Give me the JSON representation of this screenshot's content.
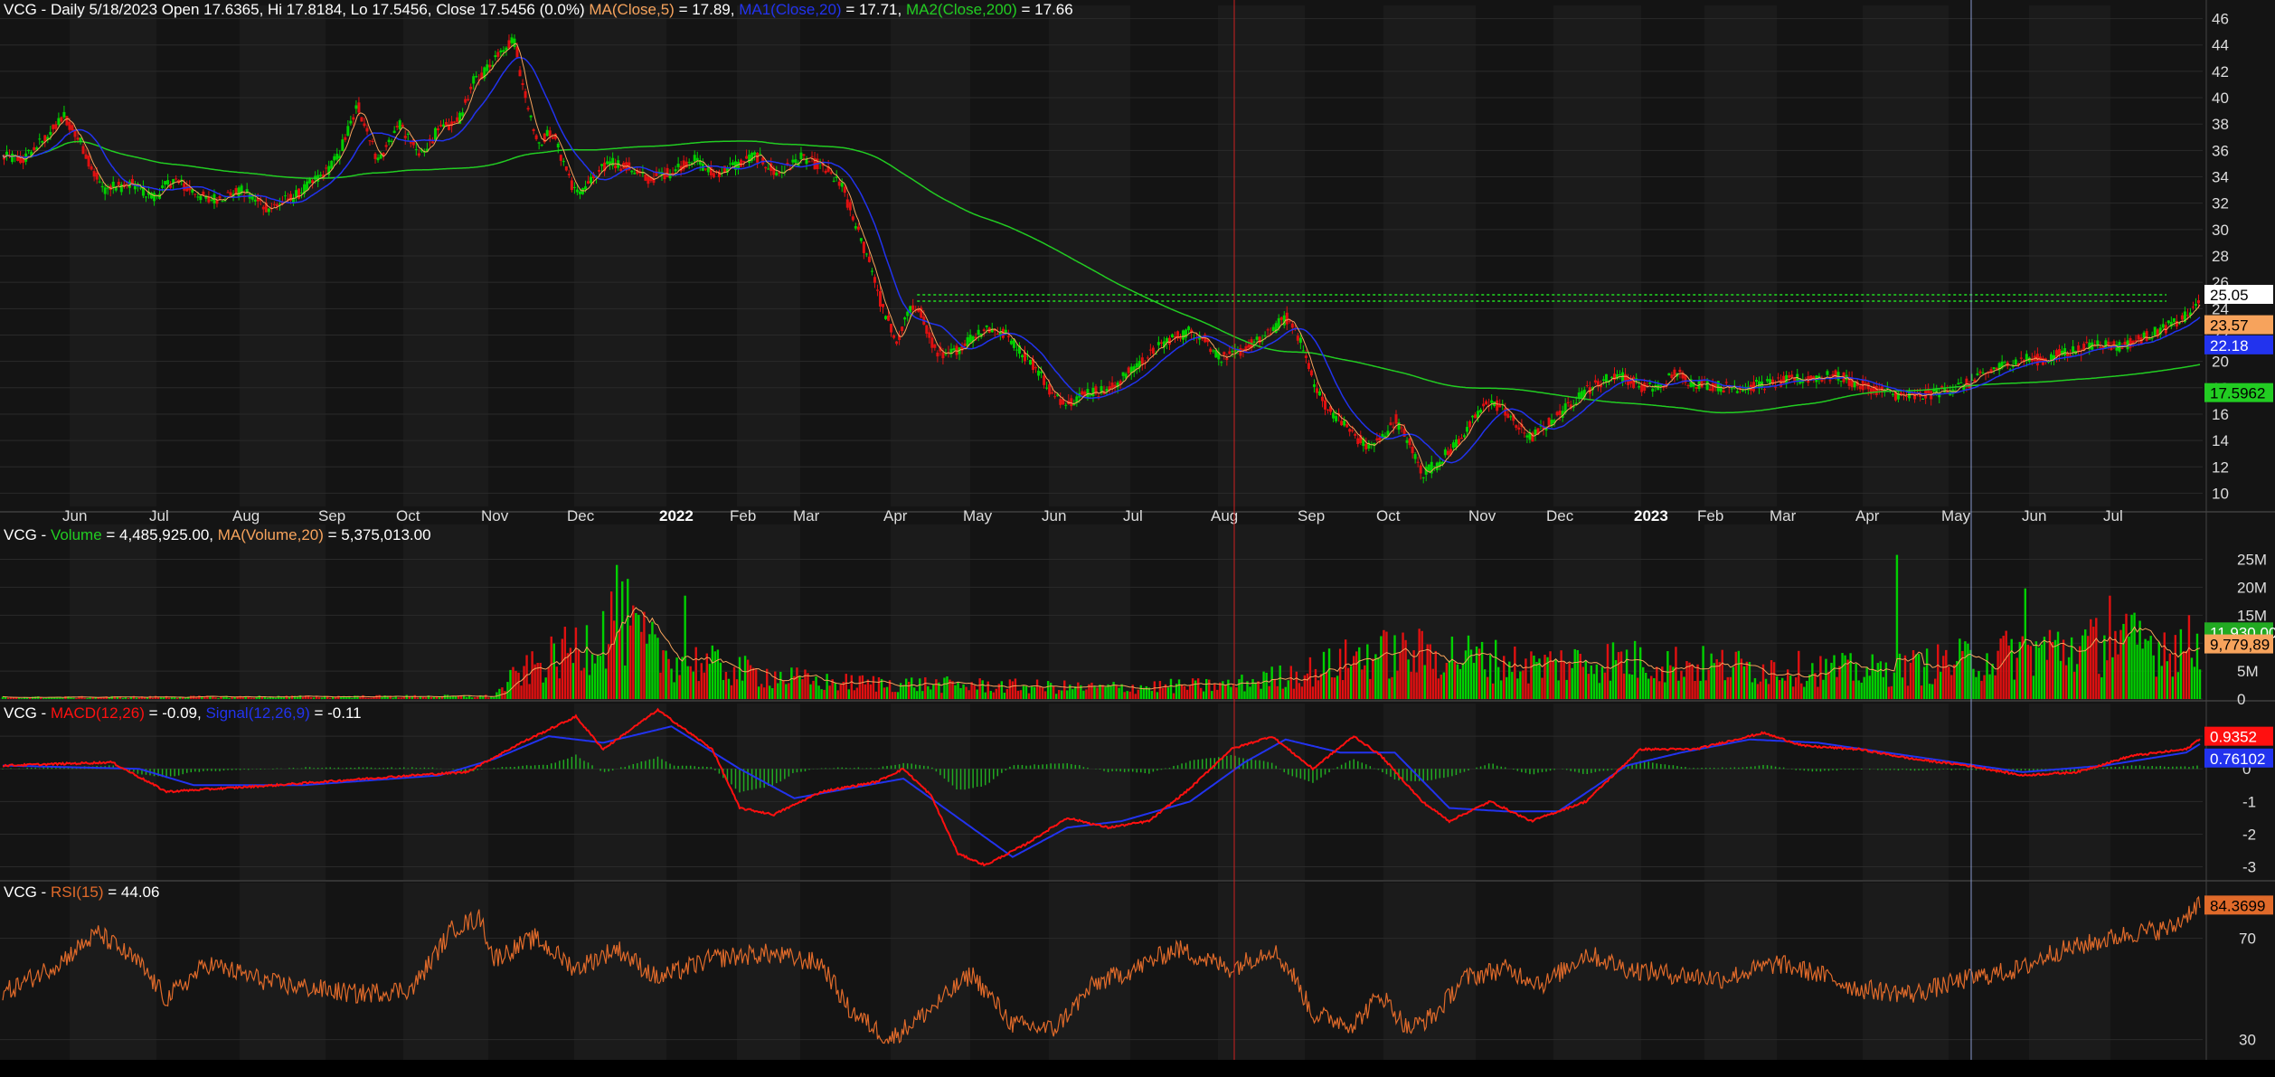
{
  "colors": {
    "bg": "#141414",
    "grid_band": "#1b1b1b",
    "grid_line": "#2a2a2a",
    "up": "#00d000",
    "down": "#e01010",
    "ma5": "#f7a35c",
    "ma20": "#2233ee",
    "ma200": "#22cc22",
    "vol_ma": "#f7a35c",
    "macd": "#ff1010",
    "signal": "#2233ee",
    "hist": "#22aa22",
    "rsi": "#e06a2a",
    "text": "#ffffff",
    "axis_text": "#dddddd"
  },
  "price_panel": {
    "header": {
      "prefix": "VCG - Daily 5/18/2023 Open 17.6365, Hi 17.8184, Lo 17.5456, Close 17.5456 (0.0%) ",
      "ma5_label": "MA(Close,5)",
      "ma5_value": " = 17.89, ",
      "ma20_label": "MA1(Close,20)",
      "ma20_value": " = 17.71, ",
      "ma200_label": "MA2(Close,200)",
      "ma200_value": " = 17.66"
    },
    "badges": [
      "25.05",
      "23.57",
      "22.18",
      "17.5962"
    ],
    "resistance_level": "25.05"
  },
  "volume_panel": {
    "header": {
      "prefix": "VCG - ",
      "label": "Volume",
      "value": " = 4,485,925.00, ",
      "ma_label": "MA(Volume,20)",
      "ma_value": " = 5,375,013.00"
    },
    "badges": [
      "11,930,00",
      "9,779,89"
    ]
  },
  "macd_panel": {
    "header": {
      "prefix": "VCG - ",
      "label": "MACD(12,26)",
      "value": " = -0.09, ",
      "signal_label": "Signal(12,26,9)",
      "signal_value": " = -0.11"
    },
    "badges": [
      "0.9352",
      "0.76102"
    ]
  },
  "rsi_panel": {
    "header": {
      "prefix": "VCG - ",
      "label": "RSI(15)",
      "value": " = 44.06"
    },
    "badges": [
      "84.3699"
    ]
  },
  "chart_data": [
    {
      "type": "candlestick",
      "title": "VCG - Daily",
      "x_ticks": [
        "Jun",
        "Jul",
        "Aug",
        "Sep",
        "Oct",
        "Nov",
        "Dec",
        "2022",
        "Feb",
        "Mar",
        "Apr",
        "May",
        "Jun",
        "Jul",
        "Aug",
        "Sep",
        "Oct",
        "Nov",
        "Dec",
        "2023",
        "Feb",
        "Mar",
        "Apr",
        "May",
        "Jun",
        "Jul"
      ],
      "y_ticks": [
        10,
        12,
        14,
        16,
        18,
        20,
        22,
        24,
        26,
        28,
        30,
        32,
        34,
        36,
        38,
        40,
        42,
        44,
        46
      ],
      "ylim": [
        9,
        47
      ],
      "close_anchors": [
        [
          0,
          35.5
        ],
        [
          15,
          35.3
        ],
        [
          35,
          37.4
        ],
        [
          45,
          38.6
        ],
        [
          58,
          36.4
        ],
        [
          72,
          33.1
        ],
        [
          95,
          33.4
        ],
        [
          110,
          32.4
        ],
        [
          125,
          33.8
        ],
        [
          150,
          32.2
        ],
        [
          175,
          32.9
        ],
        [
          195,
          31.6
        ],
        [
          215,
          32.6
        ],
        [
          235,
          34.2
        ],
        [
          245,
          35.4
        ],
        [
          260,
          39.4
        ],
        [
          275,
          35.2
        ],
        [
          290,
          38.0
        ],
        [
          305,
          35.6
        ],
        [
          318,
          37.4
        ],
        [
          333,
          38.2
        ],
        [
          345,
          41.2
        ],
        [
          355,
          42.2
        ],
        [
          365,
          43.8
        ],
        [
          375,
          44.3
        ],
        [
          382,
          40.2
        ],
        [
          392,
          36.6
        ],
        [
          402,
          37.4
        ],
        [
          412,
          34.8
        ],
        [
          420,
          32.6
        ],
        [
          432,
          33.8
        ],
        [
          445,
          35.2
        ],
        [
          460,
          34.6
        ],
        [
          472,
          33.8
        ],
        [
          490,
          34.4
        ],
        [
          505,
          35.4
        ],
        [
          520,
          34.2
        ],
        [
          535,
          34.8
        ],
        [
          552,
          35.6
        ],
        [
          567,
          34.2
        ],
        [
          585,
          35.4
        ],
        [
          600,
          34.8
        ],
        [
          615,
          33.2
        ],
        [
          625,
          30.1
        ],
        [
          635,
          27.6
        ],
        [
          645,
          23.8
        ],
        [
          655,
          21.4
        ],
        [
          662,
          23.4
        ],
        [
          670,
          24.4
        ],
        [
          680,
          21.4
        ],
        [
          690,
          20.2
        ],
        [
          705,
          21.4
        ],
        [
          720,
          22.6
        ],
        [
          735,
          22.0
        ],
        [
          750,
          20.3
        ],
        [
          760,
          19.1
        ],
        [
          770,
          17.2
        ],
        [
          782,
          17.0
        ],
        [
          795,
          17.7
        ],
        [
          810,
          17.8
        ],
        [
          825,
          19.2
        ],
        [
          840,
          20.5
        ],
        [
          855,
          21.7
        ],
        [
          870,
          22.3
        ],
        [
          880,
          21.8
        ],
        [
          890,
          20.4
        ],
        [
          900,
          20.3
        ],
        [
          912,
          21.2
        ],
        [
          922,
          21.6
        ],
        [
          930,
          22.4
        ],
        [
          940,
          23.3
        ],
        [
          948,
          22.3
        ],
        [
          955,
          20.1
        ],
        [
          962,
          17.8
        ],
        [
          972,
          16.3
        ],
        [
          982,
          15.3
        ],
        [
          992,
          14.2
        ],
        [
          1000,
          13.5
        ],
        [
          1010,
          14.1
        ],
        [
          1020,
          15.6
        ],
        [
          1030,
          13.8
        ],
        [
          1040,
          11.5
        ],
        [
          1050,
          12.2
        ],
        [
          1062,
          13.4
        ],
        [
          1075,
          15.2
        ],
        [
          1088,
          17.0
        ],
        [
          1100,
          16.4
        ],
        [
          1110,
          15.0
        ],
        [
          1120,
          14.2
        ],
        [
          1132,
          15.3
        ],
        [
          1145,
          16.4
        ],
        [
          1158,
          17.7
        ],
        [
          1170,
          18.4
        ],
        [
          1182,
          19.0
        ],
        [
          1192,
          18.6
        ],
        [
          1202,
          18.0
        ],
        [
          1215,
          18.0
        ],
        [
          1225,
          19.2
        ],
        [
          1237,
          18.4
        ],
        [
          1252,
          18.2
        ],
        [
          1265,
          18.0
        ],
        [
          1280,
          18.1
        ],
        [
          1295,
          18.3
        ],
        [
          1312,
          18.6
        ],
        [
          1328,
          18.8
        ],
        [
          1345,
          18.9
        ],
        [
          1360,
          18.2
        ],
        [
          1375,
          17.8
        ],
        [
          1390,
          17.4
        ],
        [
          1402,
          17.3
        ],
        [
          1415,
          17.6
        ],
        [
          1428,
          17.9
        ],
        [
          1442,
          18.4
        ],
        [
          1456,
          19.3
        ],
        [
          1470,
          19.8
        ],
        [
          1482,
          20.2
        ],
        [
          1496,
          20.1
        ],
        [
          1510,
          20.7
        ],
        [
          1522,
          20.9
        ],
        [
          1536,
          21.4
        ],
        [
          1550,
          21.1
        ],
        [
          1563,
          21.6
        ],
        [
          1577,
          22.2
        ],
        [
          1590,
          22.8
        ],
        [
          1600,
          23.4
        ],
        [
          1607,
          24.2
        ],
        [
          1610,
          25.05
        ]
      ],
      "series": [
        {
          "name": "MA(Close,5)",
          "value": 17.89
        },
        {
          "name": "MA1(Close,20)",
          "value": 17.71
        },
        {
          "name": "MA2(Close,200)",
          "value": 17.66
        }
      ],
      "last": {
        "open": 17.6365,
        "high": 17.8184,
        "low": 17.5456,
        "close": 17.5456
      }
    },
    {
      "type": "bar",
      "title": "Volume",
      "y_ticks": [
        "0",
        "5M",
        "10M",
        "15M",
        "20M",
        "25M"
      ],
      "ylim": [
        0,
        28
      ],
      "unit": "millions",
      "volume_anchors": [
        [
          0,
          0.3
        ],
        [
          360,
          0.5
        ],
        [
          375,
          4.0
        ],
        [
          420,
          9.0
        ],
        [
          450,
          14.0
        ],
        [
          480,
          8.0
        ],
        [
          540,
          5.0
        ],
        [
          600,
          3.0
        ],
        [
          700,
          2.5
        ],
        [
          800,
          2.0
        ],
        [
          900,
          2.5
        ],
        [
          960,
          5.0
        ],
        [
          1000,
          8.0
        ],
        [
          1060,
          8.0
        ],
        [
          1120,
          6.0
        ],
        [
          1180,
          7.0
        ],
        [
          1250,
          6.0
        ],
        [
          1300,
          5.5
        ],
        [
          1380,
          5.0
        ],
        [
          1440,
          7.0
        ],
        [
          1500,
          9.0
        ],
        [
          1560,
          10.0
        ],
        [
          1610,
          9.5
        ]
      ],
      "spikes": [
        [
          451,
          24.0
        ],
        [
          459,
          21.5
        ],
        [
          500,
          18.5
        ],
        [
          1388,
          25.8
        ],
        [
          1482,
          19.8
        ],
        [
          1545,
          18.5
        ]
      ],
      "series": [
        {
          "name": "Volume",
          "value": 4485925
        },
        {
          "name": "MA(Volume,20)",
          "value": 5375013
        }
      ]
    },
    {
      "type": "line",
      "title": "MACD",
      "y_ticks": [
        -3,
        -2,
        -1,
        0,
        1
      ],
      "ylim": [
        -3.4,
        2.0
      ],
      "macd_anchors": [
        [
          0,
          0.1
        ],
        [
          80,
          0.2
        ],
        [
          120,
          -0.7
        ],
        [
          200,
          -0.5
        ],
        [
          300,
          -0.2
        ],
        [
          340,
          -0.1
        ],
        [
          380,
          0.8
        ],
        [
          420,
          1.6
        ],
        [
          440,
          0.6
        ],
        [
          480,
          1.8
        ],
        [
          520,
          0.6
        ],
        [
          540,
          -1.2
        ],
        [
          565,
          -1.4
        ],
        [
          600,
          -0.7
        ],
        [
          640,
          -0.4
        ],
        [
          660,
          0.0
        ],
        [
          680,
          -0.8
        ],
        [
          700,
          -2.6
        ],
        [
          720,
          -2.95
        ],
        [
          750,
          -2.3
        ],
        [
          780,
          -1.5
        ],
        [
          810,
          -1.8
        ],
        [
          840,
          -1.6
        ],
        [
          870,
          -0.6
        ],
        [
          900,
          0.6
        ],
        [
          930,
          1.0
        ],
        [
          960,
          0.0
        ],
        [
          990,
          1.0
        ],
        [
          1010,
          0.4
        ],
        [
          1040,
          -1.0
        ],
        [
          1060,
          -1.6
        ],
        [
          1090,
          -1.0
        ],
        [
          1120,
          -1.6
        ],
        [
          1160,
          -1.0
        ],
        [
          1200,
          0.6
        ],
        [
          1240,
          0.6
        ],
        [
          1290,
          1.1
        ],
        [
          1320,
          0.7
        ],
        [
          1360,
          0.6
        ],
        [
          1400,
          0.3
        ],
        [
          1440,
          0.1
        ],
        [
          1480,
          -0.2
        ],
        [
          1520,
          -0.1
        ],
        [
          1560,
          0.4
        ],
        [
          1600,
          0.6
        ],
        [
          1610,
          0.93
        ]
      ],
      "signal_anchors": [
        [
          0,
          0.1
        ],
        [
          100,
          0.0
        ],
        [
          140,
          -0.5
        ],
        [
          220,
          -0.5
        ],
        [
          320,
          -0.2
        ],
        [
          360,
          0.3
        ],
        [
          400,
          1.0
        ],
        [
          440,
          0.8
        ],
        [
          490,
          1.3
        ],
        [
          540,
          0.0
        ],
        [
          580,
          -0.9
        ],
        [
          620,
          -0.6
        ],
        [
          660,
          -0.3
        ],
        [
          700,
          -1.5
        ],
        [
          740,
          -2.7
        ],
        [
          780,
          -1.8
        ],
        [
          820,
          -1.6
        ],
        [
          870,
          -1.0
        ],
        [
          910,
          0.2
        ],
        [
          940,
          0.9
        ],
        [
          980,
          0.5
        ],
        [
          1020,
          0.5
        ],
        [
          1060,
          -1.2
        ],
        [
          1100,
          -1.3
        ],
        [
          1140,
          -1.3
        ],
        [
          1190,
          0.1
        ],
        [
          1230,
          0.5
        ],
        [
          1280,
          0.9
        ],
        [
          1330,
          0.8
        ],
        [
          1380,
          0.5
        ],
        [
          1430,
          0.2
        ],
        [
          1480,
          -0.1
        ],
        [
          1540,
          0.1
        ],
        [
          1600,
          0.5
        ],
        [
          1610,
          0.76
        ]
      ],
      "series": [
        {
          "name": "MACD(12,26)",
          "value": -0.09
        },
        {
          "name": "Signal(12,26,9)",
          "value": -0.11
        }
      ]
    },
    {
      "type": "line",
      "title": "RSI",
      "y_ticks": [
        30,
        70
      ],
      "ylim": [
        22,
        92
      ],
      "rsi_anchors": [
        [
          0,
          48
        ],
        [
          40,
          60
        ],
        [
          70,
          72
        ],
        [
          100,
          60
        ],
        [
          120,
          46
        ],
        [
          150,
          60
        ],
        [
          200,
          52
        ],
        [
          260,
          48
        ],
        [
          300,
          50
        ],
        [
          330,
          74
        ],
        [
          350,
          78
        ],
        [
          360,
          62
        ],
        [
          390,
          70
        ],
        [
          420,
          58
        ],
        [
          450,
          66
        ],
        [
          480,
          54
        ],
        [
          520,
          62
        ],
        [
          560,
          64
        ],
        [
          600,
          60
        ],
        [
          620,
          42
        ],
        [
          650,
          30
        ],
        [
          680,
          42
        ],
        [
          710,
          56
        ],
        [
          740,
          36
        ],
        [
          770,
          34
        ],
        [
          800,
          52
        ],
        [
          830,
          58
        ],
        [
          860,
          66
        ],
        [
          880,
          62
        ],
        [
          900,
          58
        ],
        [
          930,
          66
        ],
        [
          945,
          56
        ],
        [
          960,
          40
        ],
        [
          990,
          36
        ],
        [
          1010,
          48
        ],
        [
          1030,
          34
        ],
        [
          1050,
          40
        ],
        [
          1070,
          54
        ],
        [
          1100,
          58
        ],
        [
          1130,
          52
        ],
        [
          1160,
          64
        ],
        [
          1190,
          58
        ],
        [
          1220,
          56
        ],
        [
          1260,
          54
        ],
        [
          1300,
          60
        ],
        [
          1330,
          56
        ],
        [
          1360,
          50
        ],
        [
          1400,
          48
        ],
        [
          1440,
          54
        ],
        [
          1480,
          58
        ],
        [
          1500,
          64
        ],
        [
          1530,
          68
        ],
        [
          1560,
          72
        ],
        [
          1590,
          74
        ],
        [
          1610,
          84.37
        ]
      ],
      "series": [
        {
          "name": "RSI(15)",
          "value": 44.06
        }
      ]
    }
  ]
}
